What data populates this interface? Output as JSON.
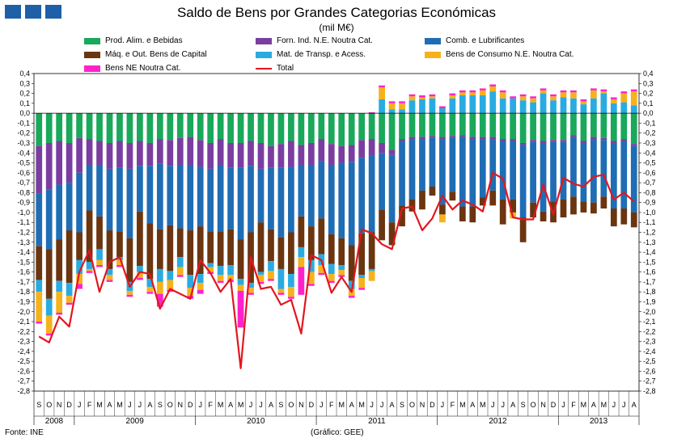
{
  "chart_data": {
    "type": "bar",
    "stacked": true,
    "title": "Saldo de Bens por Grandes Categorias Económicas",
    "subtitle": "(mil M€)",
    "source": "Fonte: INE",
    "credit": "(Gráfico: GEE)",
    "ylim": [
      -2.8,
      0.4
    ],
    "ytick_step": 0.1,
    "month_labels": [
      "S",
      "O",
      "N",
      "D",
      "J",
      "F",
      "M",
      "A",
      "M",
      "J",
      "J",
      "A",
      "S",
      "O",
      "N",
      "D",
      "J",
      "F",
      "M",
      "A",
      "M",
      "J",
      "J",
      "A",
      "S",
      "O",
      "N",
      "D",
      "J",
      "F",
      "M",
      "A",
      "M",
      "J",
      "J",
      "A",
      "S",
      "O",
      "N",
      "D",
      "J",
      "F",
      "M",
      "A",
      "M",
      "J",
      "J",
      "A",
      "S",
      "O",
      "N",
      "D",
      "J",
      "F",
      "M",
      "A",
      "M",
      "J",
      "J",
      "A"
    ],
    "years": [
      {
        "label": "2008",
        "start": 0,
        "count": 4
      },
      {
        "label": "2009",
        "start": 4,
        "count": 12
      },
      {
        "label": "2010",
        "start": 16,
        "count": 12
      },
      {
        "label": "2011",
        "start": 28,
        "count": 12
      },
      {
        "label": "2012",
        "start": 40,
        "count": 12
      },
      {
        "label": "2013",
        "start": 52,
        "count": 8
      }
    ],
    "series": [
      {
        "name": "Prod. Alim. e Bebidas",
        "color": "#1aa85a",
        "values": [
          -0.33,
          -0.3,
          -0.28,
          -0.3,
          -0.25,
          -0.26,
          -0.28,
          -0.3,
          -0.28,
          -0.3,
          -0.28,
          -0.3,
          -0.26,
          -0.27,
          -0.25,
          -0.24,
          -0.27,
          -0.3,
          -0.26,
          -0.3,
          -0.3,
          -0.28,
          -0.3,
          -0.33,
          -0.31,
          -0.28,
          -0.32,
          -0.3,
          -0.26,
          -0.31,
          -0.33,
          -0.32,
          -0.27,
          -0.26,
          -0.3,
          -0.37,
          -0.26,
          -0.24,
          -0.24,
          -0.23,
          -0.24,
          -0.23,
          -0.22,
          -0.24,
          -0.24,
          -0.24,
          -0.26,
          -0.26,
          -0.3,
          -0.27,
          -0.28,
          -0.27,
          -0.27,
          -0.22,
          -0.28,
          -0.24,
          -0.25,
          -0.28,
          -0.26,
          -0.31
        ]
      },
      {
        "name": "Forn. Ind. N.E. Noutra Cat.",
        "color": "#7a3ea0",
        "values": [
          -0.48,
          -0.47,
          -0.44,
          -0.4,
          -0.35,
          -0.26,
          -0.24,
          -0.26,
          -0.27,
          -0.26,
          -0.25,
          -0.23,
          -0.25,
          -0.26,
          -0.27,
          -0.28,
          -0.27,
          -0.26,
          -0.26,
          -0.25,
          -0.25,
          -0.25,
          -0.26,
          -0.22,
          -0.24,
          -0.26,
          -0.2,
          -0.22,
          -0.22,
          -0.21,
          -0.17,
          -0.17,
          -0.18,
          -0.17,
          -0.1,
          -0.05,
          -0.02,
          -0.02,
          -0.02,
          -0.02,
          -0.02,
          -0.02,
          -0.02,
          -0.02,
          -0.02,
          -0.02,
          -0.02,
          -0.02,
          -0.02,
          -0.02,
          -0.02,
          -0.02,
          -0.02,
          -0.02,
          -0.02,
          -0.02,
          -0.02,
          -0.02,
          -0.02,
          -0.02
        ]
      },
      {
        "name": "Comb. e Lubrificantes",
        "color": "#1f6db5",
        "values": [
          -0.53,
          -0.6,
          -0.55,
          -0.48,
          -0.6,
          -0.46,
          -0.52,
          -0.62,
          -0.64,
          -0.7,
          -0.46,
          -0.58,
          -0.66,
          -0.6,
          -0.64,
          -0.66,
          -0.6,
          -0.63,
          -0.67,
          -0.62,
          -0.72,
          -0.67,
          -0.54,
          -0.62,
          -0.7,
          -0.66,
          -0.52,
          -0.62,
          -0.58,
          -0.7,
          -0.76,
          -0.84,
          -0.76,
          -0.77,
          -0.57,
          -0.68,
          -0.65,
          -0.61,
          -0.52,
          -0.49,
          -0.66,
          -0.54,
          -0.7,
          -0.68,
          -0.59,
          -0.52,
          -0.59,
          -0.59,
          -0.73,
          -0.61,
          -0.69,
          -0.6,
          -0.58,
          -0.6,
          -0.59,
          -0.64,
          -0.57,
          -0.66,
          -0.68,
          -0.67
        ]
      },
      {
        "name": "Máq. e Out. Bens de Capital",
        "color": "#6b3510",
        "values": [
          -0.34,
          -0.5,
          -0.42,
          -0.53,
          -0.28,
          -0.52,
          -0.33,
          -0.39,
          -0.26,
          -0.44,
          -0.55,
          -0.56,
          -0.4,
          -0.46,
          -0.29,
          -0.45,
          -0.48,
          -0.32,
          -0.35,
          -0.36,
          -0.4,
          -0.51,
          -0.5,
          -0.32,
          -0.32,
          -0.42,
          -0.31,
          -0.34,
          -0.36,
          -0.3,
          -0.27,
          -0.36,
          -0.42,
          -0.37,
          -0.31,
          -0.23,
          -0.21,
          -0.12,
          -0.19,
          -0.09,
          -0.1,
          -0.09,
          -0.15,
          -0.16,
          -0.08,
          -0.15,
          -0.25,
          -0.13,
          -0.25,
          -0.15,
          -0.1,
          -0.21,
          -0.18,
          -0.18,
          -0.11,
          -0.11,
          -0.12,
          -0.18,
          -0.16,
          -0.15
        ]
      },
      {
        "name": "Mat. de Transp. e Acess.",
        "color": "#29abe2",
        "values": [
          -0.12,
          -0.17,
          -0.11,
          -0.13,
          -0.14,
          -0.07,
          -0.11,
          -0.06,
          -0.03,
          -0.09,
          -0.06,
          -0.08,
          -0.13,
          -0.09,
          -0.1,
          -0.13,
          -0.09,
          -0.04,
          -0.09,
          -0.1,
          -0.06,
          -0.05,
          -0.03,
          -0.1,
          -0.2,
          -0.13,
          -0.1,
          -0.12,
          -0.11,
          -0.1,
          -0.05,
          -0.08,
          -0.03,
          -0.02,
          0.14,
          0.04,
          0.04,
          0.13,
          0.14,
          0.15,
          0.05,
          0.15,
          0.18,
          0.18,
          0.18,
          0.22,
          0.15,
          0.15,
          0.13,
          0.11,
          0.2,
          0.13,
          0.16,
          0.15,
          0.09,
          0.15,
          0.2,
          0.1,
          0.11,
          0.08
        ]
      },
      {
        "name": "Bens de Consumo N.E. Noutra Cat.",
        "color": "#f5b21c",
        "values": [
          -0.3,
          -0.18,
          -0.21,
          -0.07,
          -0.1,
          -0.02,
          -0.05,
          -0.05,
          -0.05,
          -0.04,
          -0.06,
          -0.05,
          -0.12,
          -0.1,
          -0.08,
          -0.08,
          -0.07,
          -0.05,
          -0.06,
          -0.05,
          -0.06,
          -0.05,
          -0.07,
          -0.08,
          -0.04,
          -0.1,
          -0.1,
          -0.12,
          -0.08,
          -0.07,
          -0.05,
          -0.07,
          -0.1,
          -0.1,
          0.12,
          0.06,
          0.06,
          0.04,
          0.02,
          0.02,
          -0.08,
          0.03,
          0.03,
          0.03,
          0.05,
          0.05,
          0.06,
          -0.06,
          0.04,
          0.04,
          0.03,
          0.04,
          0.05,
          0.06,
          0.03,
          0.08,
          0.02,
          0.04,
          0.09,
          0.14
        ]
      },
      {
        "name": "Bens NE Noutra Cat.",
        "color": "#ff22cc",
        "values": [
          -0.02,
          -0.02,
          -0.02,
          -0.02,
          -0.05,
          -0.02,
          -0.02,
          -0.02,
          -0.02,
          -0.02,
          -0.02,
          -0.02,
          -0.13,
          -0.02,
          -0.02,
          -0.03,
          -0.04,
          -0.02,
          -0.02,
          -0.02,
          -0.37,
          -0.02,
          -0.02,
          -0.02,
          -0.02,
          -0.02,
          -0.28,
          -0.02,
          -0.02,
          -0.02,
          -0.02,
          -0.02,
          -0.02,
          0.01,
          0.02,
          0.02,
          0.02,
          0.02,
          0.02,
          0.02,
          0.02,
          0.02,
          0.02,
          0.02,
          0.02,
          0.02,
          0.02,
          0.02,
          0.02,
          0.02,
          0.02,
          0.02,
          0.02,
          0.02,
          0.02,
          0.02,
          0.02,
          0.02,
          0.02,
          0.02
        ]
      }
    ],
    "total": {
      "name": "Total",
      "color": "#e3161e",
      "values": [
        -2.25,
        -2.31,
        -2.05,
        -2.15,
        -1.6,
        -1.38,
        -1.8,
        -1.5,
        -1.45,
        -1.75,
        -1.6,
        -1.62,
        -1.97,
        -1.77,
        -1.82,
        -1.87,
        -1.48,
        -1.61,
        -1.8,
        -1.67,
        -2.57,
        -1.45,
        -1.77,
        -1.75,
        -1.93,
        -1.88,
        -2.22,
        -1.43,
        -1.48,
        -1.81,
        -1.65,
        -1.8,
        -1.17,
        -1.21,
        -1.32,
        -1.37,
        -0.96,
        -0.94,
        -1.18,
        -1.06,
        -0.83,
        -0.97,
        -0.88,
        -0.92,
        -0.99,
        -0.6,
        -0.66,
        -1.05,
        -1.07,
        -1.07,
        -0.72,
        -1.02,
        -0.65,
        -0.71,
        -0.74,
        -0.64,
        -0.62,
        -0.87,
        -0.8,
        -0.89
      ]
    }
  },
  "legend": [
    {
      "label": "Prod. Alim. e Bebidas",
      "color": "#1aa85a",
      "kind": "bar"
    },
    {
      "label": "Forn. Ind. N.E. Noutra Cat.",
      "color": "#7a3ea0",
      "kind": "bar"
    },
    {
      "label": "Comb. e Lubrificantes",
      "color": "#1f6db5",
      "kind": "bar"
    },
    {
      "label": "Máq. e Out. Bens de Capital",
      "color": "#6b3510",
      "kind": "bar"
    },
    {
      "label": "Mat. de Transp. e Acess.",
      "color": "#29abe2",
      "kind": "bar"
    },
    {
      "label": "Bens de Consumo N.E. Noutra Cat.",
      "color": "#f5b21c",
      "kind": "bar"
    },
    {
      "label": "Bens NE Noutra Cat.",
      "color": "#ff22cc",
      "kind": "bar"
    },
    {
      "label": "Total",
      "color": "#e3161e",
      "kind": "line"
    }
  ]
}
